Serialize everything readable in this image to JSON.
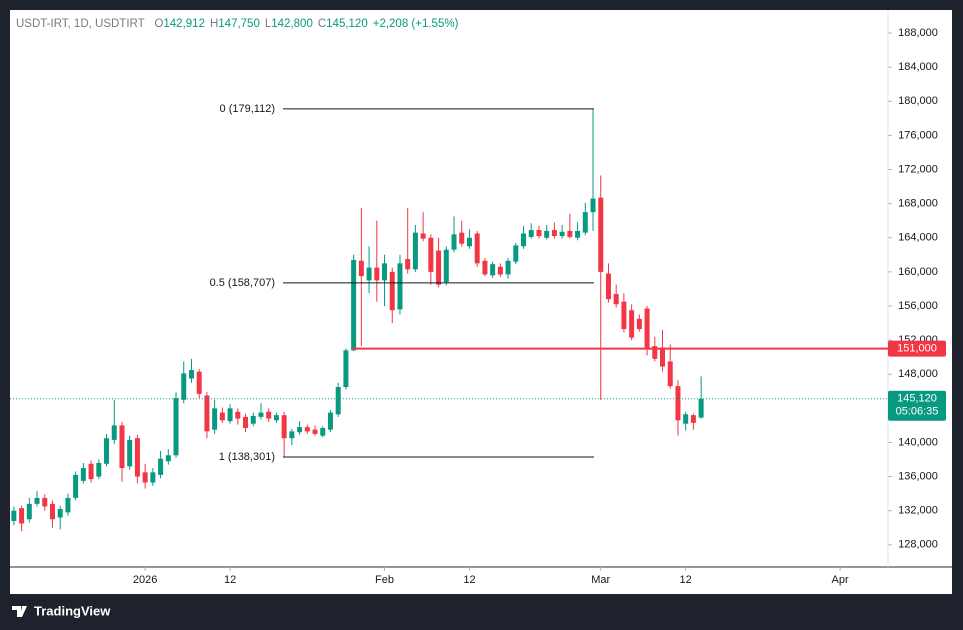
{
  "header": {
    "symbol": "USDT-IRT, 1D, USDTIRT",
    "ohlc": [
      {
        "key": "O",
        "value": "142,912"
      },
      {
        "key": "H",
        "value": "147,750"
      },
      {
        "key": "L",
        "value": "142,800"
      },
      {
        "key": "C",
        "value": "145,120"
      }
    ],
    "change": "+2,208 (+1.55%)"
  },
  "brand": "TradingView",
  "chart_data": {
    "type": "candlestick",
    "x": [
      -17,
      -16,
      -15,
      -14,
      -13,
      -12,
      -11,
      -10,
      -9,
      -8,
      -7,
      -6,
      -5,
      -4,
      -3,
      -2,
      -1,
      0,
      1,
      2,
      3,
      4,
      5,
      6,
      7,
      8,
      9,
      10,
      11,
      12,
      13,
      14,
      15,
      16,
      17,
      18,
      19,
      20,
      21,
      22,
      23,
      24,
      25,
      26,
      27,
      28,
      29,
      30,
      31,
      32,
      33,
      34,
      35,
      36,
      37,
      38,
      39,
      40,
      41,
      42,
      43,
      44,
      45,
      46,
      47,
      48,
      49,
      50,
      51,
      52,
      53,
      54,
      55,
      56,
      57,
      58,
      59,
      60,
      61,
      62,
      63,
      64,
      65,
      66,
      67,
      68,
      69,
      70,
      71,
      72
    ],
    "open": [
      130800,
      132300,
      131000,
      132800,
      133500,
      132800,
      131200,
      131800,
      133500,
      135500,
      137500,
      136000,
      137500,
      140300,
      142000,
      137200,
      140500,
      136500,
      135300,
      136200,
      137800,
      138500,
      145000,
      147500,
      148300,
      145500,
      141500,
      143500,
      142500,
      143600,
      143000,
      142200,
      143000,
      143600,
      142600,
      143200,
      140500,
      141200,
      141800,
      141500,
      140800,
      141500,
      143300,
      146500,
      150800,
      161300,
      159000,
      160500,
      159000,
      160000,
      155600,
      161500,
      160300,
      164500,
      164000,
      162500,
      158800,
      162600,
      164600,
      163000,
      164500,
      161300,
      159600,
      160600,
      159700,
      161200,
      163000,
      164100,
      164900,
      164000,
      164900,
      164200,
      164800,
      164000,
      164600,
      167000,
      168700,
      159800,
      157400,
      156500,
      155500,
      154500,
      155700,
      151300,
      151100,
      149500,
      146600,
      142200,
      143200,
      142912
    ],
    "high": [
      132500,
      132600,
      133500,
      134300,
      133900,
      133200,
      132600,
      134000,
      136600,
      137600,
      137900,
      138000,
      141000,
      145000,
      142400,
      140800,
      140900,
      137500,
      137000,
      139000,
      139200,
      145900,
      149500,
      149800,
      148600,
      145900,
      145000,
      144100,
      144500,
      144000,
      143400,
      143500,
      144600,
      144000,
      143500,
      143600,
      141600,
      142500,
      142100,
      142000,
      141900,
      143800,
      147000,
      151000,
      162000,
      167500,
      163000,
      166000,
      162000,
      160500,
      162000,
      167500,
      165500,
      167000,
      164400,
      164000,
      163000,
      166500,
      166000,
      165000,
      164800,
      161600,
      161200,
      161000,
      161600,
      163400,
      165400,
      165700,
      165400,
      165500,
      165800,
      165500,
      166800,
      165800,
      168100,
      179100,
      171300,
      161000,
      158500,
      157500,
      156200,
      155000,
      156000,
      152400,
      153200,
      151500,
      147300,
      143600,
      143400,
      147750
    ],
    "low": [
      130300,
      129600,
      130600,
      132500,
      132000,
      130000,
      129800,
      131400,
      133200,
      135200,
      135300,
      135700,
      137200,
      139800,
      135400,
      136800,
      135200,
      134600,
      134900,
      135800,
      137400,
      138200,
      144600,
      147000,
      145200,
      140500,
      141000,
      142300,
      142200,
      142100,
      141200,
      141900,
      142700,
      142400,
      142300,
      138300,
      139700,
      140900,
      141000,
      140800,
      140600,
      141200,
      143000,
      146200,
      150700,
      151300,
      157500,
      156500,
      156000,
      154000,
      155000,
      159800,
      160000,
      163600,
      158500,
      158200,
      158400,
      162300,
      163000,
      162700,
      160600,
      159500,
      159300,
      159400,
      159200,
      160900,
      162700,
      163900,
      163900,
      163800,
      163900,
      163900,
      163900,
      163700,
      164300,
      164800,
      145000,
      156400,
      155800,
      152900,
      152000,
      153000,
      150200,
      149500,
      148300,
      146300,
      140800,
      141400,
      141500,
      142800
    ],
    "close": [
      132000,
      130500,
      132800,
      133500,
      132500,
      131000,
      132200,
      133500,
      136200,
      137000,
      135700,
      137600,
      140500,
      142000,
      137000,
      140300,
      136000,
      135300,
      136500,
      138100,
      138500,
      145200,
      148100,
      148500,
      145700,
      141300,
      144000,
      142600,
      144000,
      142800,
      141700,
      143100,
      143500,
      142800,
      143200,
      140500,
      141300,
      141800,
      141300,
      141000,
      141700,
      143500,
      146500,
      150800,
      161400,
      159500,
      160500,
      159000,
      161000,
      155500,
      161000,
      160300,
      164600,
      163900,
      160000,
      158500,
      162600,
      164400,
      163300,
      164000,
      161000,
      159700,
      160900,
      159700,
      161300,
      163100,
      164500,
      164900,
      164200,
      164800,
      164200,
      164700,
      164100,
      164800,
      167000,
      168600,
      160000,
      156800,
      156200,
      153300,
      152300,
      153300,
      151000,
      149800,
      148900,
      146600,
      142600,
      143300,
      142300,
      145120
    ],
    "up_color": "#089981",
    "down_color": "#f23645",
    "xlim": [
      -17.5,
      96.2
    ],
    "xticks": [
      {
        "value": 0,
        "label": "2026"
      },
      {
        "value": 11,
        "label": "12"
      },
      {
        "value": 31,
        "label": "Feb"
      },
      {
        "value": 42,
        "label": "12"
      },
      {
        "value": 59,
        "label": "Mar"
      },
      {
        "value": 70,
        "label": "12"
      },
      {
        "value": 90,
        "label": "Apr"
      }
    ],
    "ylim": [
      125400,
      190700
    ],
    "yticks": [
      {
        "value": 128000,
        "label": "128,000"
      },
      {
        "value": 132000,
        "label": "132,000"
      },
      {
        "value": 136000,
        "label": "136,000"
      },
      {
        "value": 140000,
        "label": "140,000"
      },
      {
        "value": 144000,
        "label": "144,000"
      },
      {
        "value": 148000,
        "label": "148,000"
      },
      {
        "value": 152000,
        "label": "152,000"
      },
      {
        "value": 156000,
        "label": "156,000"
      },
      {
        "value": 160000,
        "label": "160,000"
      },
      {
        "value": 164000,
        "label": "164,000"
      },
      {
        "value": 168000,
        "label": "168,000"
      },
      {
        "value": 172000,
        "label": "172,000"
      },
      {
        "value": 176000,
        "label": "176,000"
      },
      {
        "value": 180000,
        "label": "180,000"
      },
      {
        "value": 184000,
        "label": "184,000"
      },
      {
        "value": 188000,
        "label": "188,000"
      }
    ],
    "levels": [
      {
        "label": "0 (179,112)",
        "value": 179112
      },
      {
        "label": "0.5 (158,707)",
        "value": 158707
      },
      {
        "label": "1 (138,301)",
        "value": 138301
      }
    ],
    "hline": {
      "value": 151000,
      "label": "151,000",
      "color": "#f23645"
    },
    "last_price": {
      "value": 145120,
      "label": "145,120",
      "countdown": "05:06:35",
      "color": "#089981"
    }
  }
}
